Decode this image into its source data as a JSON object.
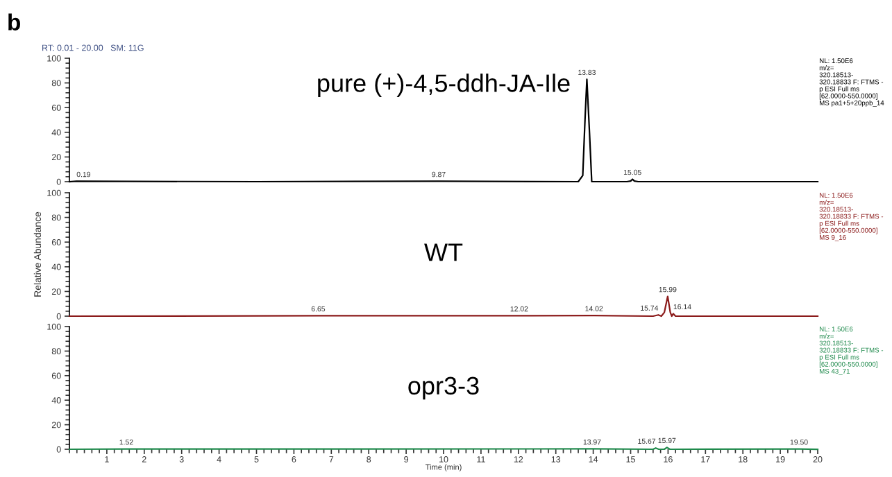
{
  "chart_data": [
    {
      "type": "line",
      "title": "pure (+)-4,5-ddh-JA-Ile",
      "xlim": [
        0,
        20
      ],
      "ylim": [
        0,
        100
      ],
      "yticks": [
        0,
        20,
        40,
        60,
        80,
        100
      ],
      "tick_labels": "y",
      "series": [
        {
          "color": "#000000",
          "x": [
            0,
            0.19,
            5,
            9.87,
            13.6,
            13.72,
            13.78,
            13.83,
            13.9,
            13.96,
            14.9,
            15.0,
            15.05,
            15.1,
            15.2,
            20
          ],
          "values": [
            0,
            0.3,
            0,
            0.3,
            0,
            5,
            50,
            83,
            40,
            0,
            0,
            0.5,
            2,
            0.5,
            0,
            0
          ]
        }
      ],
      "annotations": [
        "b",
        "RT: 0.01 - 20.00   SM: 11G",
        "NL: 1.50E6\nm/z=\n320.18513-\n320.18833 F: FTMS -\np ESI Full ms\n[62.0000-550.0000]\nMS pa1+5+20ppb_14",
        {
          "text": "0.19",
          "x": 0.19,
          "y": 0.3
        },
        {
          "text": "9.87",
          "x": 9.87,
          "y": 0.3
        },
        {
          "text": "13.83",
          "x": 13.83,
          "y": 83
        },
        {
          "text": "15.05",
          "x": 15.05,
          "y": 2
        }
      ]
    },
    {
      "type": "line",
      "title": "WT",
      "ylabel": "Relative Abundance",
      "xlim": [
        0,
        20
      ],
      "ylim": [
        0,
        100
      ],
      "yticks": [
        0,
        20,
        40,
        60,
        80,
        100
      ],
      "tick_labels": "y",
      "series": [
        {
          "color": "#8b1a1a",
          "x": [
            0,
            6.65,
            12.02,
            14.02,
            15.6,
            15.74,
            15.82,
            15.9,
            15.99,
            16.06,
            16.1,
            16.14,
            16.2,
            20
          ],
          "values": [
            0,
            0.3,
            0.3,
            0.5,
            0,
            1,
            0,
            3,
            16,
            3,
            0,
            2,
            0,
            0
          ]
        }
      ],
      "annotations": [
        "NL: 1.50E6\nm/z=\n320.18513-\n320.18833 F: FTMS -\np ESI Full ms\n[62.0000-550.0000]\nMS 9_16",
        {
          "text": "6.65",
          "x": 6.65,
          "y": 0.3
        },
        {
          "text": "12.02",
          "x": 12.02,
          "y": 0.3
        },
        {
          "text": "14.02",
          "x": 14.02,
          "y": 0.5
        },
        {
          "text": "15.74",
          "x": 15.74,
          "y": 1
        },
        {
          "text": "15.99",
          "x": 15.99,
          "y": 16
        },
        {
          "text": "16.14",
          "x": 16.14,
          "y": 2
        }
      ]
    },
    {
      "type": "line",
      "title": "opr3-3",
      "xlabel": "Time (min)",
      "xlim": [
        0,
        20
      ],
      "ylim": [
        0,
        100
      ],
      "yticks": [
        0,
        20,
        40,
        60,
        80,
        100
      ],
      "xticks": [
        1,
        2,
        3,
        4,
        5,
        6,
        7,
        8,
        9,
        10,
        11,
        12,
        13,
        14,
        15,
        16,
        17,
        18,
        19,
        20
      ],
      "series": [
        {
          "color": "#1f8a4c",
          "x": [
            0,
            1.52,
            13.97,
            15.6,
            15.67,
            15.75,
            15.9,
            15.97,
            16.05,
            19.5,
            20
          ],
          "values": [
            0,
            0.2,
            0.3,
            0,
            1,
            0,
            0,
            1.5,
            0,
            0.2,
            0
          ]
        }
      ],
      "annotations": [
        "NL: 1.50E6\nm/z=\n320.18513-\n320.18833 F: FTMS -\np ESI Full ms\n[62.0000-550.0000]\nMS 43_71",
        {
          "text": "1.52",
          "x": 1.52,
          "y": 0.2
        },
        {
          "text": "13.97",
          "x": 13.97,
          "y": 0.3
        },
        {
          "text": "15.67",
          "x": 15.67,
          "y": 1
        },
        {
          "text": "15.97",
          "x": 15.97,
          "y": 1.5
        },
        {
          "text": "19.50",
          "x": 19.5,
          "y": 0.2
        }
      ]
    }
  ]
}
